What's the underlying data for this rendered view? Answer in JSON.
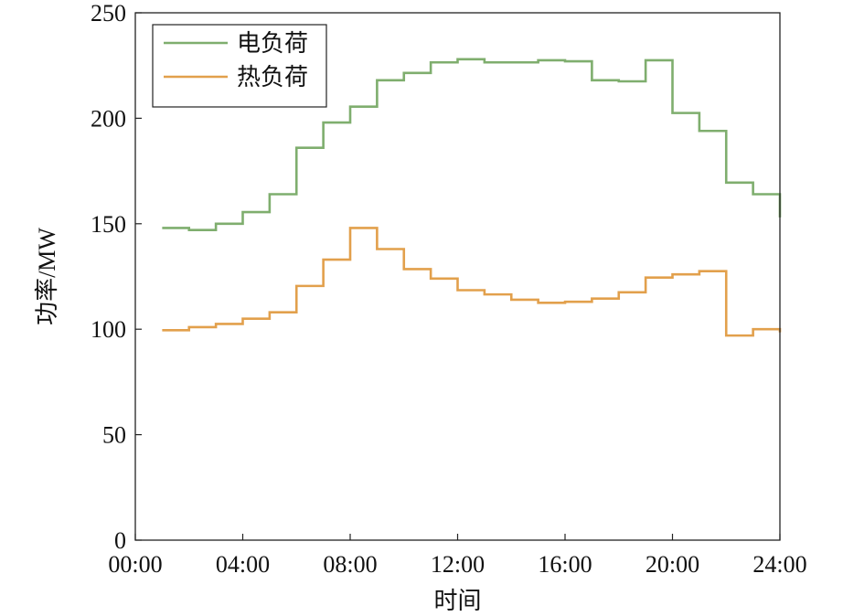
{
  "chart_data": {
    "type": "line",
    "step": true,
    "x": [
      "01:00",
      "02:00",
      "03:00",
      "04:00",
      "05:00",
      "06:00",
      "07:00",
      "08:00",
      "09:00",
      "10:00",
      "11:00",
      "12:00",
      "13:00",
      "14:00",
      "15:00",
      "16:00",
      "17:00",
      "18:00",
      "19:00",
      "20:00",
      "21:00",
      "22:00",
      "23:00",
      "24:00"
    ],
    "series": [
      {
        "name": "电负荷",
        "color": "#7fae6e",
        "values": [
          148,
          147,
          150,
          155.5,
          164,
          186,
          198,
          205.5,
          218,
          221.5,
          226.5,
          228,
          226.5,
          226.5,
          227.5,
          227,
          218,
          217.5,
          227.5,
          202.5,
          194,
          169.5,
          164,
          153
        ]
      },
      {
        "name": "热负荷",
        "color": "#e2a04c",
        "values": [
          99.5,
          101,
          102.5,
          105,
          108,
          120.5,
          133,
          148,
          138,
          128.5,
          124,
          118.5,
          116.5,
          114,
          112.5,
          113,
          114.5,
          117.5,
          124.5,
          126,
          127.5,
          97,
          100,
          98.5
        ]
      }
    ],
    "xlabel": "时间",
    "ylabel": "功率/MW",
    "xticks": [
      "00:00",
      "04:00",
      "08:00",
      "12:00",
      "16:00",
      "20:00",
      "24:00"
    ],
    "yticks": [
      "0",
      "50",
      "100",
      "150",
      "200",
      "250"
    ],
    "xlim": [
      0,
      24
    ],
    "ylim": [
      0,
      250
    ],
    "legend_position": "top-left",
    "grid": false
  }
}
